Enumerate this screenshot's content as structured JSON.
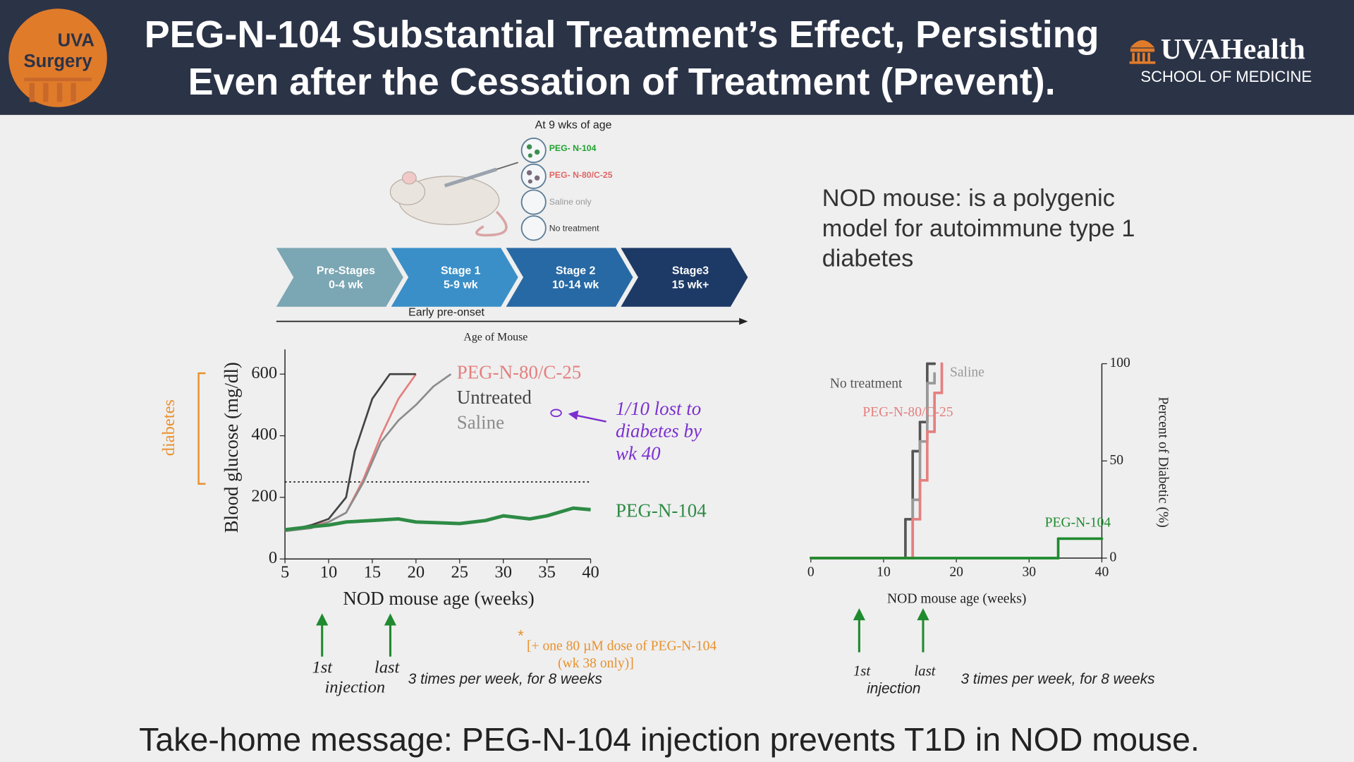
{
  "header": {
    "title_lines": [
      "PEG-N-104 Substantial Treatment’s Effect, Persisting",
      "Even after the Cessation of Treatment (Prevent)."
    ],
    "logo_left": [
      "UVA",
      "Surgery"
    ],
    "logo_right": "UVAHealth",
    "logo_right_sub": "SCHOOL OF MEDICINE"
  },
  "diagram": {
    "treatment_label": "At 9 wks of age",
    "treatments": [
      "PEG- N-104",
      "PEG- N-80/C-25",
      "Saline only",
      "No treatment"
    ],
    "stages": [
      {
        "name": "Pre-Stages",
        "range": "0-4 wk"
      },
      {
        "name": "Stage 1",
        "range": "5-9 wk"
      },
      {
        "name": "Stage 2",
        "range": "10-14 wk"
      },
      {
        "name": "Stage3",
        "range": "15 wk+"
      }
    ],
    "early_label": "Early pre-onset",
    "axis_label": "Age of Mouse"
  },
  "description": [
    "NOD mouse: is a polygenic",
    "model for autoimmune type 1",
    "diabetes"
  ],
  "chart_data": [
    {
      "type": "line",
      "x_label": "NOD mouse age (weeks)",
      "y_label": "Blood glucose (mg/dl)",
      "xlim": [
        5,
        40
      ],
      "ylim": [
        0,
        680
      ],
      "xticks": [
        5,
        10,
        15,
        20,
        25,
        30,
        35,
        40
      ],
      "yticks": [
        0,
        200,
        400,
        600
      ],
      "threshold": 250,
      "series": [
        {
          "name": "PEG-N-80/C-25",
          "color": "#e57f7f",
          "x": [
            5,
            10,
            12,
            14,
            16,
            18,
            20
          ],
          "values": [
            90,
            120,
            150,
            260,
            400,
            520,
            600
          ]
        },
        {
          "name": "Untreated",
          "color": "#444444",
          "x": [
            5,
            8,
            10,
            12,
            13,
            15,
            17,
            20
          ],
          "values": [
            90,
            110,
            130,
            200,
            350,
            520,
            600,
            600
          ]
        },
        {
          "name": "Saline",
          "color": "#8c8c8c",
          "x": [
            5,
            8,
            10,
            12,
            14,
            16,
            18,
            20,
            22,
            24
          ],
          "values": [
            90,
            100,
            120,
            150,
            250,
            380,
            450,
            500,
            560,
            600
          ]
        },
        {
          "name": "PEG-N-104",
          "color": "#2e8b45",
          "x": [
            5,
            8,
            10,
            12,
            15,
            18,
            20,
            25,
            28,
            30,
            33,
            35,
            38,
            40
          ],
          "values": [
            95,
            105,
            110,
            120,
            125,
            130,
            120,
            115,
            125,
            140,
            130,
            140,
            165,
            160
          ]
        }
      ],
      "annotations": {
        "diabetes": "diabetes",
        "lost": [
          "1/10 lost to",
          "diabetes by",
          "wk 40"
        ],
        "first": "1st",
        "last": "last",
        "injection": "injection",
        "schedule": "3 times per week, for 8 weeks",
        "star": "*",
        "dose": [
          "[+ one 80 µM dose of PEG-N-104",
          "(wk 38 only)]"
        ]
      }
    },
    {
      "type": "step",
      "x_label": "NOD mouse age (weeks)",
      "y_label": "Percent of Diabetic (%)",
      "y_axis_side": "right",
      "xlim": [
        0,
        40
      ],
      "ylim": [
        0,
        100
      ],
      "xticks": [
        0,
        10,
        20,
        30,
        40
      ],
      "yticks": [
        0,
        50,
        100
      ],
      "series": [
        {
          "name": "No treatment",
          "color": "#555555",
          "x": [
            0,
            13,
            14,
            15,
            16,
            17
          ],
          "values": [
            0,
            20,
            55,
            70,
            100,
            100
          ]
        },
        {
          "name": "Saline",
          "color": "#999999",
          "x": [
            0,
            14,
            15,
            16,
            17
          ],
          "values": [
            0,
            30,
            60,
            90,
            95
          ]
        },
        {
          "name": "PEG-N-80/C-25",
          "color": "#e57f7f",
          "x": [
            0,
            14,
            15,
            16,
            17,
            18
          ],
          "values": [
            0,
            20,
            40,
            65,
            85,
            100
          ]
        },
        {
          "name": "PEG-N-104",
          "color": "#1f8a2e",
          "x": [
            0,
            34,
            40
          ],
          "values": [
            0,
            10,
            10
          ]
        }
      ],
      "annotations": {
        "first": "1st",
        "last": "last",
        "injection": "injection",
        "schedule": "3 times per week, for 8 weeks"
      }
    }
  ],
  "take_home": "Take-home message: PEG-N-104 injection prevents T1D in NOD mouse."
}
